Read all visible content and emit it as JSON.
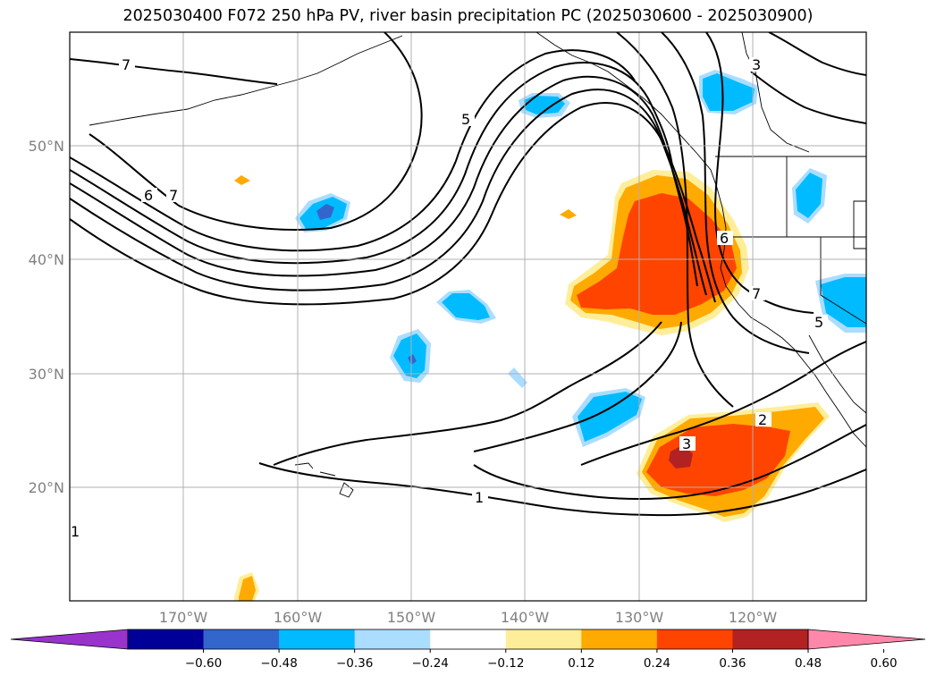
{
  "title": "2025030400 F072 250 hPa PV, river basin precipitation PC (2025030600 - 2025030900)",
  "latitude_labels": [
    "50°N",
    "40°N",
    "30°N",
    "20°N"
  ],
  "longitude_labels": [
    "170°W",
    "160°W",
    "150°W",
    "140°W",
    "130°W",
    "120°W"
  ],
  "pv_contour_labels": [
    "7",
    "6",
    "7",
    "5",
    "3",
    "6",
    "7",
    "5",
    "3",
    "2",
    "1",
    "1"
  ],
  "colorbar": {
    "ticks": [
      "−0.60",
      "−0.48",
      "−0.36",
      "−0.24",
      "−0.12",
      "0.12",
      "0.24",
      "0.36",
      "0.48",
      "0.60"
    ],
    "colors": [
      "#9933cc",
      "#000099",
      "#3366cc",
      "#00bbff",
      "#aaddff",
      "#ffffff",
      "#ffee99",
      "#ffaa00",
      "#ff4400",
      "#b22222",
      "#ff88aa"
    ]
  }
}
